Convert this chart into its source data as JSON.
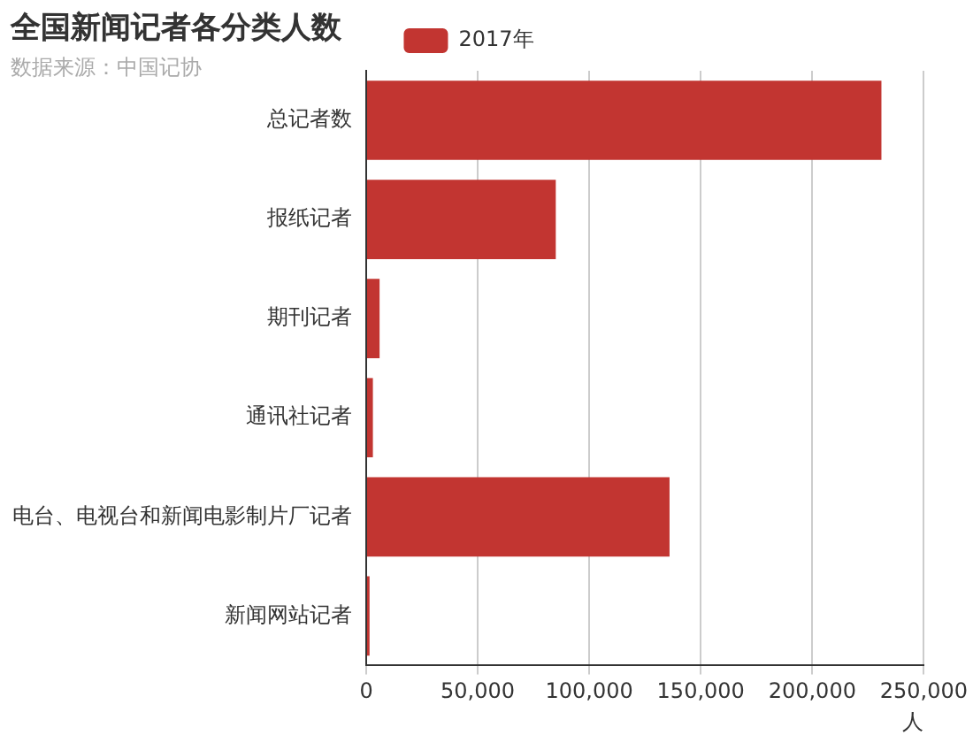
{
  "chart_data": {
    "type": "bar",
    "orientation": "horizontal",
    "title": "全国新闻记者各分类人数",
    "subtitle": "数据来源：中国记协",
    "xlabel": "人",
    "categories": [
      "总记者数",
      "报纸记者",
      "期刊记者",
      "通讯社记者",
      "电台、电视台和新闻电影制片厂记者",
      "新闻网站记者"
    ],
    "series": [
      {
        "name": "2017年",
        "color": "#c23531",
        "values": [
          231000,
          85000,
          6000,
          3000,
          136000,
          1500
        ]
      }
    ],
    "xlim": [
      0,
      250000
    ],
    "xticks": [
      {
        "value": 0,
        "label": "0"
      },
      {
        "value": 50000,
        "label": "50,000"
      },
      {
        "value": 100000,
        "label": "100,000"
      },
      {
        "value": 150000,
        "label": "150,000"
      },
      {
        "value": 200000,
        "label": "200,000"
      },
      {
        "value": 250000,
        "label": "250,000"
      }
    ],
    "grid": "x",
    "legend": "top"
  }
}
